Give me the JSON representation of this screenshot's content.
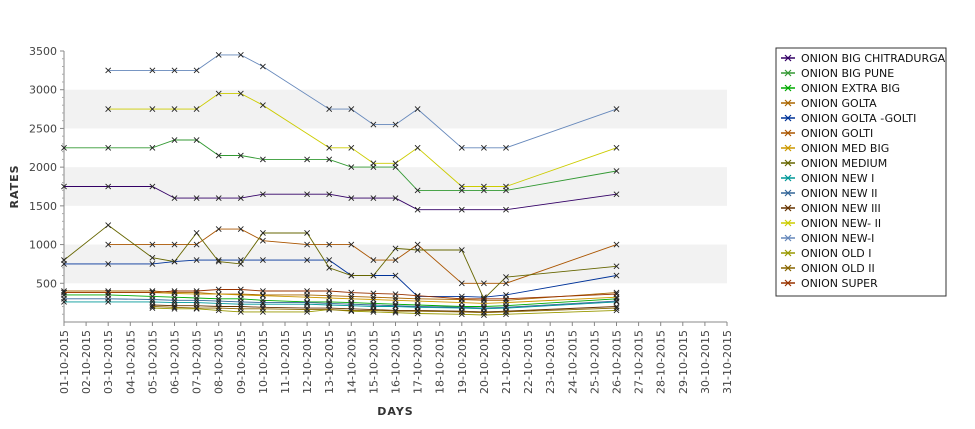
{
  "chart_data": {
    "type": "line",
    "xlabel": "DAYS",
    "ylabel": "RATES",
    "ylim": [
      0,
      3500
    ],
    "y_ticks": [
      500,
      1000,
      1500,
      2000,
      2500,
      3000,
      3500
    ],
    "grid": "alternating horizontal bands",
    "legend_position": "right",
    "categories": [
      "01-10-2015",
      "02-10-2015",
      "03-10-2015",
      "04-10-2015",
      "05-10-2015",
      "06-10-2015",
      "07-10-2015",
      "08-10-2015",
      "09-10-2015",
      "10-10-2015",
      "11-10-2015",
      "12-10-2015",
      "13-10-2015",
      "14-10-2015",
      "15-10-2015",
      "16-10-2015",
      "17-10-2015",
      "18-10-2015",
      "19-10-2015",
      "20-10-2015",
      "21-10-2015",
      "22-10-2015",
      "23-10-2015",
      "24-10-2015",
      "25-10-2015",
      "26-10-2015",
      "27-10-2015",
      "28-10-2015",
      "29-10-2015",
      "30-10-2015",
      "31-10-2015"
    ],
    "series": [
      {
        "name": "ONION BIG CHITRADURGA",
        "color": "#330066",
        "values": [
          1750,
          null,
          1750,
          null,
          1750,
          1600,
          1600,
          1600,
          1600,
          1650,
          null,
          1650,
          1650,
          1600,
          1600,
          1600,
          1450,
          null,
          1450,
          null,
          1450,
          null,
          null,
          null,
          null,
          1650,
          null,
          null,
          null,
          null,
          null
        ]
      },
      {
        "name": "ONION BIG PUNE",
        "color": "#339933",
        "values": [
          2250,
          null,
          2250,
          null,
          2250,
          2350,
          2350,
          2150,
          2150,
          2100,
          null,
          2100,
          2100,
          2000,
          2000,
          2000,
          1700,
          null,
          1700,
          1700,
          1700,
          null,
          null,
          null,
          null,
          1950,
          null,
          null,
          null,
          null,
          null
        ]
      },
      {
        "name": "ONION EXTRA BIG",
        "color": "#00aa00",
        "values": [
          350,
          null,
          350,
          null,
          330,
          320,
          310,
          300,
          300,
          280,
          null,
          260,
          260,
          250,
          240,
          230,
          220,
          null,
          200,
          200,
          210,
          null,
          null,
          null,
          null,
          300,
          null,
          null,
          null,
          null,
          null
        ]
      },
      {
        "name": "ONION GOLTA",
        "color": "#aa6600",
        "values": [
          400,
          null,
          400,
          null,
          400,
          380,
          380,
          360,
          360,
          350,
          null,
          350,
          340,
          330,
          320,
          310,
          300,
          null,
          290,
          280,
          280,
          null,
          null,
          null,
          null,
          380,
          null,
          null,
          null,
          null,
          null
        ]
      },
      {
        "name": "ONION GOLTA -GOLTI",
        "color": "#003399",
        "values": [
          750,
          null,
          750,
          null,
          750,
          780,
          800,
          800,
          800,
          800,
          null,
          800,
          800,
          600,
          600,
          600,
          330,
          null,
          330,
          320,
          350,
          null,
          null,
          null,
          null,
          600,
          null,
          null,
          null,
          null,
          null
        ]
      },
      {
        "name": "ONION GOLTI",
        "color": "#aa5500",
        "values": [
          null,
          null,
          1000,
          null,
          1000,
          1000,
          1000,
          1200,
          1200,
          1050,
          null,
          1000,
          1000,
          1000,
          800,
          800,
          1000,
          null,
          500,
          500,
          500,
          null,
          null,
          null,
          null,
          1000,
          null,
          null,
          null,
          null,
          null
        ]
      },
      {
        "name": "ONION MED BIG",
        "color": "#cc9900",
        "values": [
          380,
          null,
          380,
          null,
          380,
          370,
          360,
          360,
          350,
          340,
          null,
          320,
          310,
          300,
          290,
          280,
          270,
          null,
          250,
          240,
          250,
          null,
          null,
          null,
          null,
          320,
          null,
          null,
          null,
          null,
          null
        ]
      },
      {
        "name": "ONION MEDIUM",
        "color": "#666600",
        "values": [
          800,
          null,
          1250,
          null,
          830,
          780,
          1150,
          780,
          750,
          1150,
          null,
          1150,
          700,
          600,
          600,
          950,
          930,
          null,
          930,
          300,
          580,
          null,
          null,
          null,
          null,
          720,
          null,
          null,
          null,
          null,
          null
        ]
      },
      {
        "name": "ONION NEW I",
        "color": "#009999",
        "values": [
          260,
          null,
          260,
          null,
          260,
          250,
          250,
          240,
          230,
          230,
          null,
          230,
          220,
          210,
          200,
          200,
          190,
          null,
          180,
          170,
          180,
          null,
          null,
          null,
          null,
          260,
          null,
          null,
          null,
          null,
          null
        ]
      },
      {
        "name": "ONION NEW II",
        "color": "#336699",
        "values": [
          300,
          null,
          300,
          null,
          290,
          280,
          280,
          270,
          260,
          250,
          null,
          250,
          240,
          230,
          220,
          210,
          200,
          null,
          190,
          180,
          190,
          null,
          null,
          null,
          null,
          270,
          null,
          null,
          null,
          null,
          null
        ]
      },
      {
        "name": "ONION NEW III",
        "color": "#663300",
        "values": [
          null,
          null,
          null,
          null,
          220,
          210,
          210,
          200,
          200,
          190,
          null,
          180,
          180,
          170,
          160,
          150,
          150,
          null,
          140,
          130,
          140,
          null,
          null,
          null,
          null,
          200,
          null,
          null,
          null,
          null,
          null
        ]
      },
      {
        "name": "ONION NEW- II",
        "color": "#cccc00",
        "values": [
          null,
          null,
          2750,
          null,
          2750,
          2750,
          2750,
          2950,
          2950,
          2800,
          null,
          null,
          2250,
          2250,
          2050,
          2050,
          2250,
          null,
          1750,
          1750,
          1750,
          null,
          null,
          null,
          null,
          2250,
          null,
          null,
          null,
          null,
          null
        ]
      },
      {
        "name": "ONION NEW-I",
        "color": "#6688bb",
        "values": [
          null,
          null,
          3250,
          null,
          3250,
          3250,
          3250,
          3450,
          3450,
          3300,
          null,
          null,
          2750,
          2750,
          2550,
          2550,
          2750,
          null,
          2250,
          2250,
          2250,
          null,
          null,
          null,
          null,
          2750,
          null,
          null,
          null,
          null,
          null
        ]
      },
      {
        "name": "ONION OLD I",
        "color": "#999900",
        "values": [
          null,
          null,
          null,
          null,
          180,
          170,
          170,
          150,
          130,
          130,
          null,
          130,
          160,
          140,
          130,
          120,
          110,
          null,
          100,
          90,
          100,
          null,
          null,
          null,
          null,
          150,
          null,
          null,
          null,
          null,
          null
        ]
      },
      {
        "name": "ONION OLD II",
        "color": "#886600",
        "values": [
          null,
          null,
          null,
          null,
          200,
          190,
          180,
          180,
          170,
          170,
          null,
          160,
          160,
          150,
          150,
          140,
          140,
          null,
          130,
          120,
          130,
          null,
          null,
          null,
          null,
          180,
          null,
          null,
          null,
          null,
          null
        ]
      },
      {
        "name": "ONION SUPER",
        "color": "#993300",
        "values": [
          380,
          null,
          380,
          null,
          380,
          400,
          400,
          420,
          420,
          400,
          null,
          400,
          400,
          380,
          370,
          360,
          340,
          null,
          300,
          300,
          300,
          null,
          null,
          null,
          null,
          360,
          null,
          null,
          null,
          null,
          null
        ]
      }
    ]
  }
}
